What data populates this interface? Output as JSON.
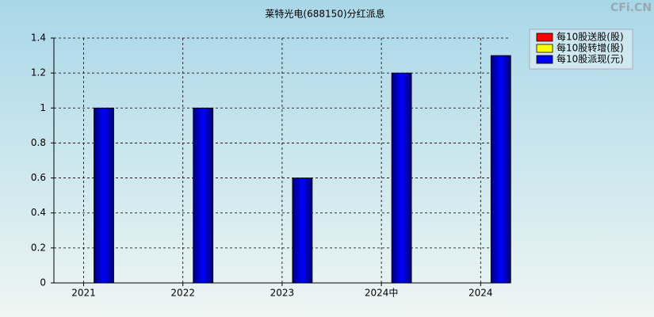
{
  "chart_data": {
    "type": "bar",
    "title": "莱特光电(688150)分红派息",
    "watermark": "CFi.CN",
    "categories": [
      "2021",
      "2022",
      "2023",
      "2024中",
      "2024"
    ],
    "series": [
      {
        "name": "每10股送股(股)",
        "color": "#ff0000",
        "values": [
          null,
          null,
          null,
          null,
          null
        ]
      },
      {
        "name": "每10股转增(股)",
        "color": "#ffff00",
        "values": [
          null,
          null,
          null,
          null,
          null
        ]
      },
      {
        "name": "每10股派现(元)",
        "color": "#0000ff",
        "values": [
          1,
          1,
          0.6,
          1.2,
          1.3
        ]
      }
    ],
    "ylim": [
      0,
      1.4
    ],
    "yticks": [
      0,
      0.2,
      0.4,
      0.6,
      0.8,
      1,
      1.2,
      1.4
    ],
    "grid": true,
    "legend": "top-right"
  }
}
